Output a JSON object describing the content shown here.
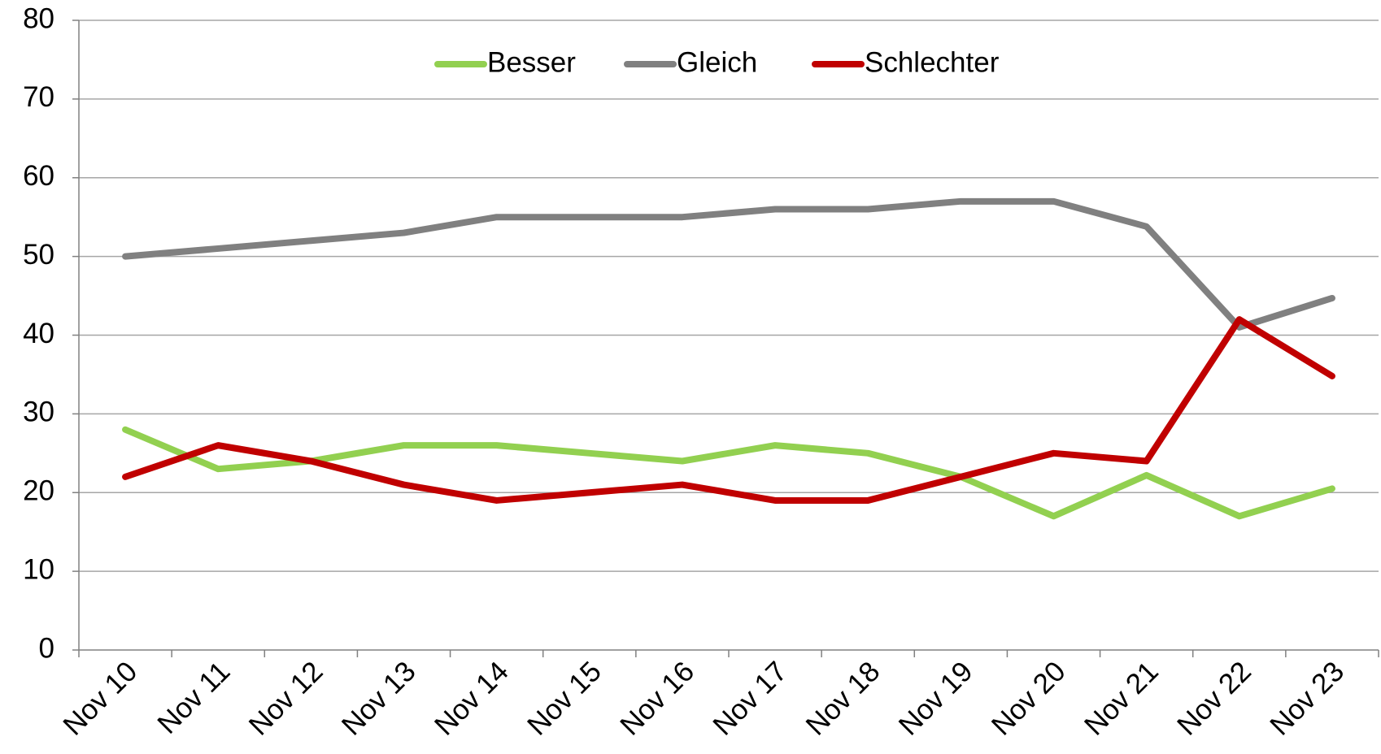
{
  "chart_data": {
    "type": "line",
    "categories": [
      "Nov 10",
      "Nov 11",
      "Nov 12",
      "Nov 13",
      "Nov 14",
      "Nov 15",
      "Nov 16",
      "Nov 17",
      "Nov 18",
      "Nov 19",
      "Nov 20",
      "Nov 21",
      "Nov 22",
      "Nov 23"
    ],
    "series": [
      {
        "name": "Besser",
        "color": "#92d050",
        "values": [
          28,
          23,
          24,
          26,
          26,
          25,
          24,
          26,
          25,
          22,
          17,
          22.2,
          17,
          20.5
        ]
      },
      {
        "name": "Gleich",
        "color": "#808080",
        "values": [
          50,
          51,
          52,
          53,
          55,
          55,
          55,
          56,
          56,
          57,
          57,
          53.8,
          41,
          44.7
        ]
      },
      {
        "name": "Schlechter",
        "color": "#c00000",
        "values": [
          22,
          26,
          24,
          21,
          19,
          20,
          21,
          19,
          19,
          22,
          25,
          24,
          42,
          34.8
        ]
      }
    ],
    "ylim": [
      0,
      80
    ],
    "yticks": [
      0,
      10,
      20,
      30,
      40,
      50,
      60,
      70,
      80
    ],
    "grid": true,
    "legend": "top"
  }
}
